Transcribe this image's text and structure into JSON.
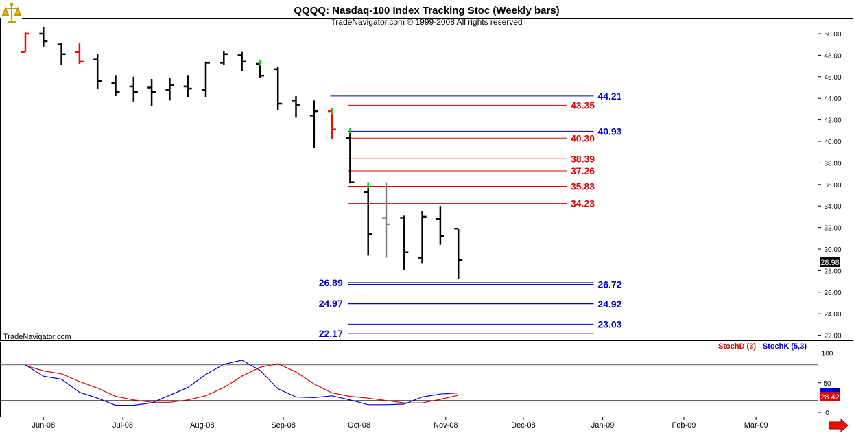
{
  "header": {
    "title": "QQQQ:  Nasdaq-100 Index Tracking Stoc  (Weekly bars)",
    "copyright": "TradeNavigator.com © 1999-2008 All rights reserved",
    "watermark": "TradeNavigator.com",
    "logo_icon": "scales-icon"
  },
  "chart_data": [
    {
      "type": "ohlc",
      "title": "QQQQ:  Nasdaq-100 Index Tracking Stoc  (Weekly bars)",
      "x_unit": "week",
      "ylim": [
        21.5,
        50.5
      ],
      "y_ticks": [
        "22.00",
        "24.00",
        "26.00",
        "28.00",
        "30.00",
        "32.00",
        "34.00",
        "36.00",
        "38.00",
        "40.00",
        "42.00",
        "44.00",
        "46.00",
        "48.00",
        "50.00"
      ],
      "x_ticks": [
        {
          "label": "Jun-08",
          "week": 1
        },
        {
          "label": "Jul-08",
          "week": 5.4
        },
        {
          "label": "Aug-08",
          "week": 9.8
        },
        {
          "label": "Sep-08",
          "week": 14.3
        },
        {
          "label": "Oct-08",
          "week": 18.5
        },
        {
          "label": "Nov-08",
          "week": 23.3
        },
        {
          "label": "Dec-08",
          "week": 27.6
        },
        {
          "label": "Jan-09",
          "week": 32
        },
        {
          "label": "Feb-09",
          "week": 36.5
        },
        {
          "label": "Mar-09",
          "week": 40.5
        }
      ],
      "last_price": "28.98",
      "bars": [
        {
          "w": 0,
          "o": 48.3,
          "h": 50.1,
          "l": 48.3,
          "c": 50.0,
          "color": "#ff0000"
        },
        {
          "w": 1,
          "o": 50.0,
          "h": 50.6,
          "l": 48.8,
          "c": 49.3,
          "color": "#000000"
        },
        {
          "w": 2,
          "o": 49.0,
          "h": 49.1,
          "l": 47.1,
          "c": 48.1,
          "color": "#000000"
        },
        {
          "w": 3,
          "o": 48.3,
          "h": 49.1,
          "l": 47.2,
          "c": 47.4,
          "color": "#ff0000"
        },
        {
          "w": 4,
          "o": 47.6,
          "h": 48.1,
          "l": 44.9,
          "c": 45.6,
          "color": "#000000"
        },
        {
          "w": 5,
          "o": 45.4,
          "h": 46.1,
          "l": 44.2,
          "c": 44.6,
          "color": "#000000"
        },
        {
          "w": 6,
          "o": 45.1,
          "h": 46.0,
          "l": 43.7,
          "c": 44.6,
          "color": "#000000"
        },
        {
          "w": 7,
          "o": 45.0,
          "h": 45.8,
          "l": 43.3,
          "c": 44.6,
          "color": "#000000"
        },
        {
          "w": 8,
          "o": 44.8,
          "h": 45.9,
          "l": 43.8,
          "c": 45.2,
          "color": "#000000"
        },
        {
          "w": 9,
          "o": 45.1,
          "h": 46.1,
          "l": 44.1,
          "c": 44.9,
          "color": "#000000"
        },
        {
          "w": 10,
          "o": 44.8,
          "h": 47.4,
          "l": 44.1,
          "c": 47.3,
          "color": "#000000"
        },
        {
          "w": 11,
          "o": 47.3,
          "h": 48.4,
          "l": 47.1,
          "c": 48.1,
          "color": "#000000"
        },
        {
          "w": 12,
          "o": 48.0,
          "h": 48.3,
          "l": 46.5,
          "c": 47.4,
          "color": "#000000"
        },
        {
          "w": 13,
          "o": 47.2,
          "h": 47.4,
          "l": 45.9,
          "c": 46.1,
          "color": "#000000"
        },
        {
          "w": 14,
          "o": 46.7,
          "h": 46.9,
          "l": 42.9,
          "c": 43.5,
          "color": "#000000"
        },
        {
          "w": 15,
          "o": 43.8,
          "h": 44.2,
          "l": 42.2,
          "c": 43.4,
          "color": "#000000"
        },
        {
          "w": 16,
          "o": 42.4,
          "h": 43.8,
          "l": 39.4,
          "c": 42.8,
          "color": "#000000"
        },
        {
          "w": 17,
          "o": 42.8,
          "h": 42.9,
          "l": 40.2,
          "c": 41.1,
          "color": "#ff0000"
        },
        {
          "w": 18,
          "o": 40.3,
          "h": 41.1,
          "l": 36.1,
          "c": 36.2,
          "color": "#000000"
        },
        {
          "w": 19,
          "o": 35.3,
          "h": 36.2,
          "l": 29.4,
          "c": 31.4,
          "color": "#000000"
        },
        {
          "w": 20,
          "o": 32.9,
          "h": 36.2,
          "l": 29.2,
          "c": 32.3,
          "color": "#808080"
        },
        {
          "w": 21,
          "o": 32.9,
          "h": 33.1,
          "l": 28.1,
          "c": 29.7,
          "color": "#000000"
        },
        {
          "w": 22,
          "o": 29.2,
          "h": 33.5,
          "l": 28.7,
          "c": 33.0,
          "color": "#000000"
        },
        {
          "w": 23,
          "o": 32.8,
          "h": 34.0,
          "l": 30.4,
          "c": 31.2,
          "color": "#000000"
        },
        {
          "w": 24,
          "o": 31.9,
          "h": 31.9,
          "l": 27.2,
          "c": 28.98,
          "color": "#000000"
        }
      ],
      "green_ticks": [
        {
          "w": 13,
          "y": 47.3
        },
        {
          "w": 17,
          "y": 42.8
        },
        {
          "w": 18,
          "y": 41.0
        },
        {
          "w": 19,
          "y": 35.9
        }
      ],
      "levels": [
        {
          "value": 44.21,
          "label": "44.21",
          "color": "#0000cc",
          "label_side": "right",
          "from_w": 16.9,
          "to_w": 31.5
        },
        {
          "value": 43.35,
          "label": "43.35",
          "color": "#dd0000",
          "label_side": "right",
          "from_w": 17.9,
          "to_w": 30.0
        },
        {
          "value": 40.93,
          "label": "40.93",
          "color": "#0000cc",
          "label_side": "right",
          "from_w": 17.9,
          "to_w": 31.5
        },
        {
          "value": 40.3,
          "label": "40.30",
          "color": "#dd0000",
          "label_side": "right",
          "from_w": 17.9,
          "to_w": 30.0
        },
        {
          "value": 38.39,
          "label": "38.39",
          "color": "#dd0000",
          "label_side": "right",
          "from_w": 17.9,
          "to_w": 30.0
        },
        {
          "value": 37.26,
          "label": "37.26",
          "color": "#dd0000",
          "label_side": "right",
          "from_w": 17.9,
          "to_w": 30.0
        },
        {
          "value": 35.83,
          "label": "35.83",
          "color": "#dd0000",
          "label_side": "right",
          "from_w": 17.9,
          "to_w": 30.0
        },
        {
          "value": 34.23,
          "label": "34.23",
          "color": "#dd0000",
          "label_side": "right",
          "from_w": 17.9,
          "to_w": 30.0
        },
        {
          "value": 26.89,
          "label": "26.89",
          "color": "#0000cc",
          "label_side": "left",
          "from_w": 17.9,
          "to_w": 31.5
        },
        {
          "value": 26.72,
          "label": "26.72",
          "color": "#0000cc",
          "label_side": "right",
          "from_w": 17.9,
          "to_w": 31.5
        },
        {
          "value": 24.97,
          "label": "24.97",
          "color": "#0000cc",
          "label_side": "left",
          "from_w": 17.9,
          "to_w": 31.5
        },
        {
          "value": 24.92,
          "label": "24.92",
          "color": "#0000cc",
          "label_side": "right",
          "from_w": 17.9,
          "to_w": 31.5
        },
        {
          "value": 23.03,
          "label": "23.03",
          "color": "#0000cc",
          "label_side": "right",
          "from_w": 17.9,
          "to_w": 31.5
        },
        {
          "value": 22.17,
          "label": "22.17",
          "color": "#0000cc",
          "label_side": "left",
          "from_w": 17.9,
          "to_w": 31.5
        }
      ]
    },
    {
      "type": "line",
      "ylim": [
        0,
        100
      ],
      "y_ticks": [
        "0",
        "50",
        "100"
      ],
      "reference_lines": [
        80,
        20
      ],
      "last_value": "28.42",
      "series": [
        {
          "name": "StochD (3)",
          "color": "#dd0000",
          "x": [
            0,
            1,
            2,
            3,
            4,
            5,
            6,
            7,
            8,
            9,
            10,
            11,
            12,
            13,
            14,
            15,
            16,
            17,
            18,
            19,
            20,
            21,
            22,
            23,
            24
          ],
          "values": [
            79,
            70,
            65,
            52,
            41,
            27,
            21,
            17,
            17,
            21,
            28,
            42,
            61,
            76,
            82,
            68,
            48,
            33,
            27,
            24,
            20,
            16,
            16,
            22,
            29
          ]
        },
        {
          "name": "StochK (5,3)",
          "color": "#0000cc",
          "x": [
            0,
            1,
            2,
            3,
            4,
            5,
            6,
            7,
            8,
            9,
            10,
            11,
            12,
            13,
            14,
            15,
            16,
            17,
            18,
            19,
            20,
            21,
            22,
            23,
            24
          ],
          "values": [
            80,
            61,
            56,
            34,
            24,
            12,
            12,
            16,
            29,
            42,
            64,
            81,
            88,
            71,
            40,
            26,
            25,
            28,
            21,
            13,
            13,
            14,
            26,
            31,
            33
          ]
        }
      ]
    }
  ]
}
